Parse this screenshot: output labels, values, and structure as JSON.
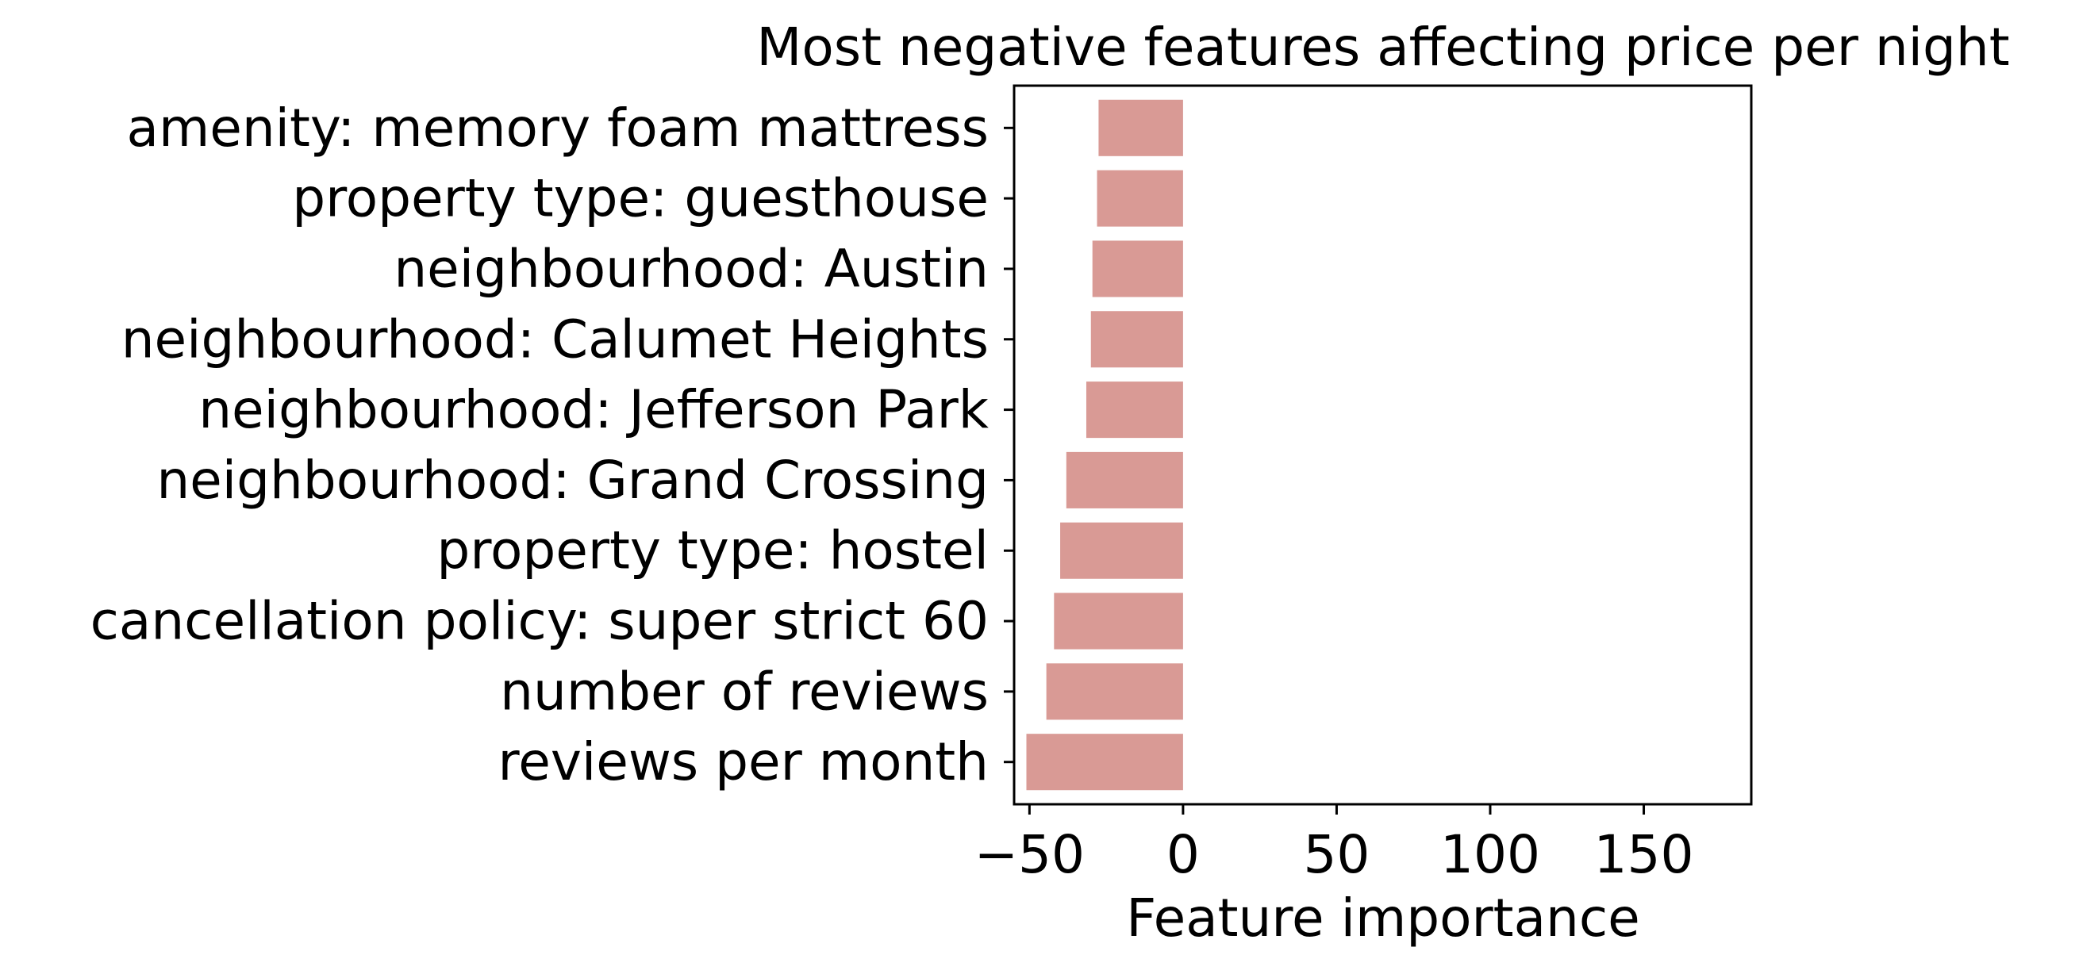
{
  "chart_data": {
    "type": "bar",
    "orientation": "horizontal",
    "title": "Most negative features affecting price per night",
    "xlabel": "Feature importance",
    "ylabel": "",
    "xlim": [
      -55,
      185
    ],
    "xticks": [
      -50,
      0,
      50,
      100,
      150
    ],
    "xtick_labels": [
      "−50",
      "0",
      "50",
      "100",
      "150"
    ],
    "grid": false,
    "categories": [
      "amenity: memory foam mattress",
      "property type: guesthouse",
      "neighbourhood: Austin",
      "neighbourhood: Calumet Heights",
      "neighbourhood: Jefferson Park",
      "neighbourhood: Grand Crossing",
      "property type: hostel",
      "cancellation policy: super strict 60",
      "number of reviews",
      "reviews per month"
    ],
    "values": [
      -27.5,
      -28,
      -29.5,
      -30,
      -31.5,
      -38,
      -40,
      -42,
      -44.5,
      -51
    ],
    "bar_color": "#d99a95"
  }
}
